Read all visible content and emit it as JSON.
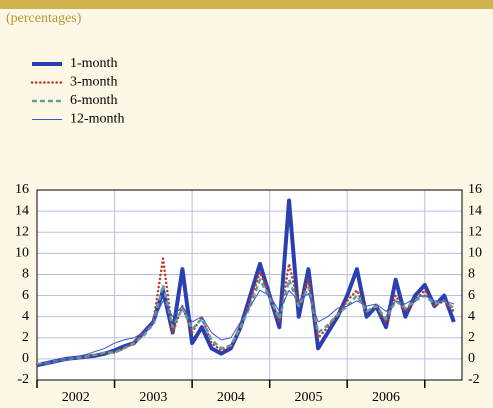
{
  "chart_data": {
    "type": "line",
    "subtitle": "(percentages)",
    "x": [
      2002,
      2002.125,
      2002.25,
      2002.375,
      2002.5,
      2002.625,
      2002.75,
      2002.875,
      2003,
      2003.125,
      2003.25,
      2003.375,
      2003.5,
      2003.625,
      2003.75,
      2003.875,
      2004,
      2004.125,
      2004.25,
      2004.375,
      2004.5,
      2004.625,
      2004.75,
      2004.875,
      2005,
      2005.125,
      2005.25,
      2005.375,
      2005.5,
      2005.625,
      2005.75,
      2005.875,
      2006,
      2006.125,
      2006.25,
      2006.375,
      2006.5,
      2006.625,
      2006.75,
      2006.875,
      2007,
      2007.125,
      2007.25,
      2007.375
    ],
    "series": [
      {
        "name": "1-month",
        "color": "#2a3fb0",
        "values": [
          -0.6,
          -0.4,
          -0.2,
          0,
          0.1,
          0.2,
          0.3,
          0.5,
          0.8,
          1.2,
          1.5,
          2.5,
          3.5,
          6.5,
          2.5,
          8.5,
          1.5,
          3,
          1,
          0.5,
          1,
          3,
          6,
          9,
          6,
          3,
          15,
          4,
          8.5,
          1,
          2.5,
          4,
          6,
          8.5,
          4,
          5,
          3,
          7.5,
          4,
          6,
          7,
          5,
          6,
          3.5
        ]
      },
      {
        "name": "3-month",
        "color": "#c0392b",
        "values": [
          -0.5,
          -0.4,
          -0.2,
          0,
          0.1,
          0.2,
          0.4,
          0.6,
          0.6,
          1,
          1.6,
          2.4,
          3.5,
          9.5,
          2.5,
          5,
          2.5,
          4,
          1.5,
          0.8,
          1.2,
          3,
          5.5,
          8.2,
          6,
          3.5,
          9,
          5,
          7.5,
          2,
          3,
          4.2,
          5.5,
          6.5,
          4.5,
          5,
          3.5,
          6,
          4.5,
          5.5,
          6.5,
          5,
          5.5,
          4.5
        ]
      },
      {
        "name": "6-month",
        "color": "#5f9ea0",
        "values": [
          -0.5,
          -0.4,
          -0.2,
          0,
          0.1,
          0.2,
          0.4,
          0.6,
          0.6,
          1,
          1.5,
          2.2,
          3.3,
          7,
          3,
          4.8,
          2.8,
          3.8,
          1.8,
          1,
          1.3,
          3,
          5,
          7.5,
          5.8,
          3.8,
          7.5,
          5,
          6.8,
          2.5,
          3.2,
          4.2,
          5,
          6,
          4.5,
          5,
          3.8,
          5.5,
          4.8,
          5.5,
          6,
          5.2,
          5.5,
          4.8
        ]
      },
      {
        "name": "12-month",
        "color": "#3a5ad0",
        "values": [
          -0.6,
          -0.4,
          -0.2,
          0,
          0.2,
          0.4,
          0.7,
          1,
          1.5,
          1.8,
          2,
          2.5,
          3.5,
          5.5,
          4,
          5,
          3.5,
          4,
          2.5,
          1.8,
          2,
          3.5,
          5,
          6.5,
          6,
          4.5,
          6.5,
          5.5,
          6.2,
          3.5,
          4,
          4.8,
          5,
          5.5,
          5,
          5.2,
          4.5,
          5.5,
          5.2,
          5.8,
          6,
          5.5,
          5.5,
          5.2
        ]
      }
    ],
    "categories": [
      "2002",
      "2003",
      "2004",
      "2005",
      "2006"
    ],
    "xlim": [
      2002,
      2007.48
    ],
    "xticks": [
      2002,
      2003,
      2004,
      2005,
      2006,
      2007
    ],
    "ylim": [
      -2,
      16
    ],
    "yticks": [
      -2,
      0,
      2,
      4,
      6,
      8,
      10,
      12,
      14,
      16
    ],
    "grid": true
  }
}
